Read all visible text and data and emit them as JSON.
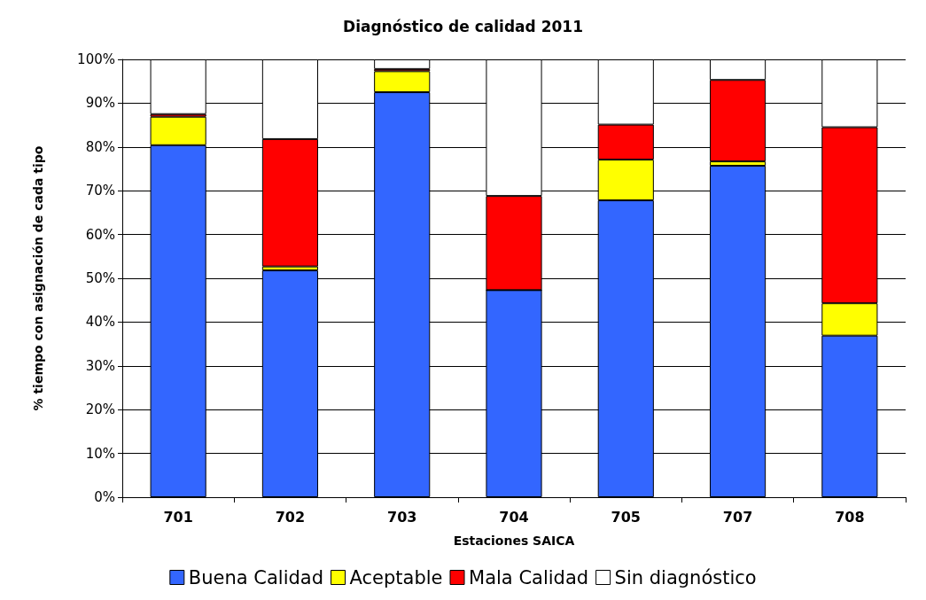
{
  "chart_data": {
    "type": "bar",
    "title": "Diagnóstico de calidad 2011",
    "xlabel": "Estaciones SAICA",
    "ylabel": "% tiempo con asignación de cada tipo",
    "categories": [
      "701",
      "702",
      "703",
      "704",
      "705",
      "707",
      "708"
    ],
    "stacked": true,
    "series": [
      {
        "name": "Buena Calidad",
        "color": "#3366ff",
        "values": [
          80.4,
          51.8,
          92.5,
          47.3,
          67.8,
          75.7,
          36.9
        ]
      },
      {
        "name": "Aceptable",
        "color": "#ffff00",
        "values": [
          6.5,
          0.9,
          4.8,
          0,
          9.3,
          1.0,
          7.4
        ]
      },
      {
        "name": "Mala Calidad",
        "color": "#ff0000",
        "values": [
          0.6,
          29.1,
          0.5,
          21.5,
          8.0,
          18.6,
          40.2
        ]
      },
      {
        "name": "Sin diagnóstico",
        "color": "#ffffff",
        "values": [
          12.5,
          18.2,
          2.2,
          31.2,
          14.9,
          4.7,
          15.5
        ]
      }
    ],
    "ylim": [
      0,
      100
    ],
    "yticks": [
      {
        "value": 0,
        "label": "0%"
      },
      {
        "value": 10,
        "label": "10%"
      },
      {
        "value": 20,
        "label": "20%"
      },
      {
        "value": 30,
        "label": "30%"
      },
      {
        "value": 40,
        "label": "40%"
      },
      {
        "value": 50,
        "label": "50%"
      },
      {
        "value": 60,
        "label": "60%"
      },
      {
        "value": 70,
        "label": "70%"
      },
      {
        "value": 80,
        "label": "80%"
      },
      {
        "value": 90,
        "label": "90%"
      },
      {
        "value": 100,
        "label": "100%"
      }
    ],
    "grid": "y",
    "legend": "bottom"
  }
}
